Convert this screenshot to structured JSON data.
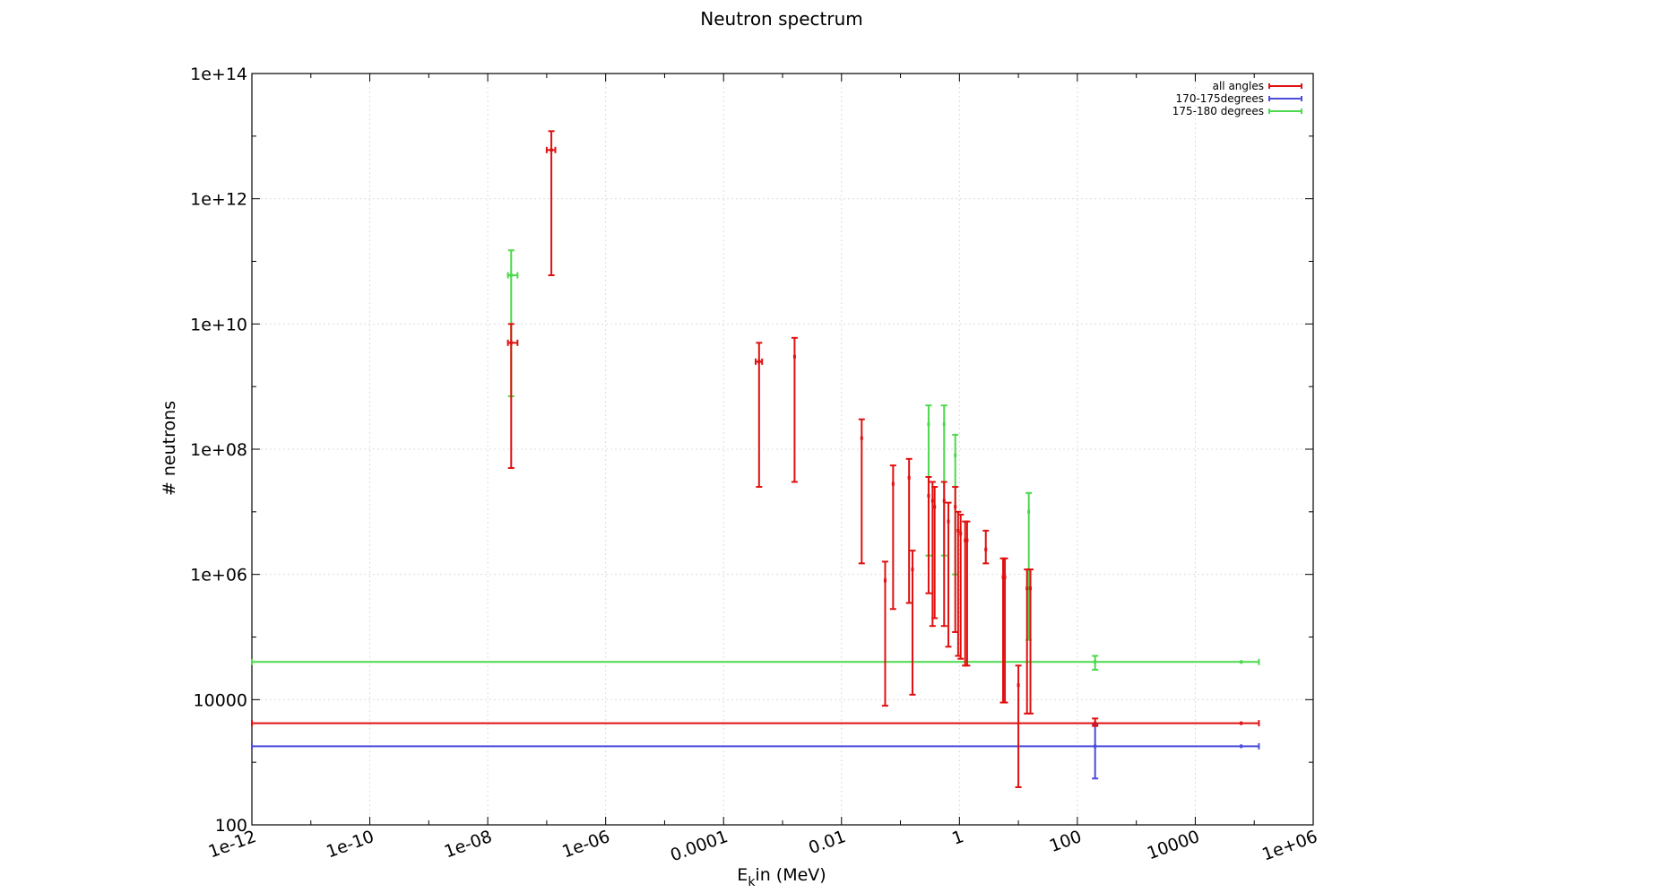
{
  "chart_data": {
    "type": "scatter",
    "title": "Neutron spectrum",
    "xlabel_main": "E",
    "xlabel_sub": "k",
    "xlabel_rest": "in (MeV)",
    "ylabel": "# neutrons",
    "xscale": "log",
    "yscale": "log",
    "xlim": [
      1e-12,
      1000000.0
    ],
    "ylim": [
      100,
      100000000000000.0
    ],
    "grid": true,
    "legend_position": "top-right",
    "x_ticks": [
      {
        "value": 1e-12,
        "label": "1e-12"
      },
      {
        "value": 1e-10,
        "label": "1e-10"
      },
      {
        "value": 1e-08,
        "label": "1e-08"
      },
      {
        "value": 1e-06,
        "label": "1e-06"
      },
      {
        "value": 0.0001,
        "label": "0.0001"
      },
      {
        "value": 0.01,
        "label": "0.01"
      },
      {
        "value": 1,
        "label": "1"
      },
      {
        "value": 100,
        "label": "100"
      },
      {
        "value": 10000,
        "label": "10000"
      },
      {
        "value": 1000000.0,
        "label": "1e+06"
      }
    ],
    "y_ticks": [
      {
        "value": 100,
        "label": "100"
      },
      {
        "value": 10000,
        "label": "10000"
      },
      {
        "value": 1000000.0,
        "label": "1e+06"
      },
      {
        "value": 100000000.0,
        "label": "1e+08"
      },
      {
        "value": 10000000000.0,
        "label": "1e+10"
      },
      {
        "value": 1000000000000.0,
        "label": "1e+12"
      },
      {
        "value": 100000000000000.0,
        "label": "1e+14"
      }
    ],
    "series": [
      {
        "name": "175-180 degrees",
        "color": "#4cd94c",
        "points": [
          {
            "x": 2.5e-08,
            "y": 60000000000.0,
            "ylo": 700000000.0,
            "yhi": 150000000000.0,
            "xlo": 2.2e-08,
            "xhi": 3.2e-08
          },
          {
            "x": 0.3,
            "y": 250000000.0,
            "ylo": 2000000.0,
            "yhi": 500000000.0
          },
          {
            "x": 0.55,
            "y": 250000000.0,
            "ylo": 2000000.0,
            "yhi": 500000000.0
          },
          {
            "x": 0.85,
            "y": 80000000.0,
            "ylo": 1000000.0,
            "yhi": 170000000.0
          },
          {
            "x": 15,
            "y": 10000000.0,
            "ylo": 90000.0,
            "yhi": 20000000.0
          },
          {
            "x": 200,
            "y": 40000,
            "ylo": 30000,
            "yhi": 50000
          },
          {
            "x": 60000,
            "y": 40000,
            "ylo": 40000,
            "yhi": 40000,
            "xlo": 1e-12,
            "xhi": 120000.0
          }
        ]
      },
      {
        "name": "170-175degrees",
        "color": "#4c4cdb",
        "points": [
          {
            "x": 200,
            "y": 1800,
            "ylo": 550,
            "yhi": 4000
          },
          {
            "x": 60000,
            "y": 1800,
            "ylo": 1800,
            "yhi": 1800,
            "xlo": 1e-12,
            "xhi": 120000.0
          }
        ]
      },
      {
        "name": "all angles",
        "color": "#e01010",
        "points": [
          {
            "x": 2.5e-08,
            "y": 5000000000.0,
            "ylo": 50000000.0,
            "yhi": 10000000000.0,
            "xlo": 2.2e-08,
            "xhi": 3.2e-08
          },
          {
            "x": 1.2e-07,
            "y": 6000000000000.0,
            "ylo": 60000000000.0,
            "yhi": 12000000000000.0,
            "xlo": 1e-07,
            "xhi": 1.4e-07
          },
          {
            "x": 0.0004,
            "y": 2500000000.0,
            "ylo": 25000000.0,
            "yhi": 5000000000.0,
            "xlo": 0.00035,
            "xhi": 0.00045
          },
          {
            "x": 0.0016,
            "y": 3000000000.0,
            "ylo": 30000000.0,
            "yhi": 6000000000.0
          },
          {
            "x": 0.022,
            "y": 150000000.0,
            "ylo": 1500000.0,
            "yhi": 300000000.0
          },
          {
            "x": 0.055,
            "y": 800000.0,
            "ylo": 8000,
            "yhi": 1600000.0
          },
          {
            "x": 0.075,
            "y": 28000000.0,
            "ylo": 280000.0,
            "yhi": 55000000.0
          },
          {
            "x": 0.14,
            "y": 35000000.0,
            "ylo": 350000.0,
            "yhi": 70000000.0
          },
          {
            "x": 0.16,
            "y": 1200000.0,
            "ylo": 12000,
            "yhi": 2400000.0
          },
          {
            "x": 0.3,
            "y": 18000000.0,
            "ylo": 500000.0,
            "yhi": 36000000.0
          },
          {
            "x": 0.35,
            "y": 15000000.0,
            "ylo": 150000.0,
            "yhi": 30000000.0
          },
          {
            "x": 0.38,
            "y": 12000000.0,
            "ylo": 200000.0,
            "yhi": 25000000.0
          },
          {
            "x": 0.55,
            "y": 15000000.0,
            "ylo": 150000.0,
            "yhi": 30000000.0
          },
          {
            "x": 0.65,
            "y": 7000000.0,
            "ylo": 70000.0,
            "yhi": 14000000.0
          },
          {
            "x": 0.85,
            "y": 12000000.0,
            "ylo": 120000.0,
            "yhi": 25000000.0
          },
          {
            "x": 0.95,
            "y": 5000000.0,
            "ylo": 50000.0,
            "yhi": 10000000.0
          },
          {
            "x": 1.05,
            "y": 4500000.0,
            "ylo": 45000.0,
            "yhi": 9000000.0
          },
          {
            "x": 1.25,
            "y": 3500000.0,
            "ylo": 35000.0,
            "yhi": 7000000.0
          },
          {
            "x": 1.35,
            "y": 3500000.0,
            "ylo": 35000.0,
            "yhi": 7000000.0
          },
          {
            "x": 2.8,
            "y": 2500000.0,
            "ylo": 1500000.0,
            "yhi": 5000000.0
          },
          {
            "x": 5.5,
            "y": 900000.0,
            "ylo": 9000,
            "yhi": 1800000.0
          },
          {
            "x": 5.9,
            "y": 900000.0,
            "ylo": 9000,
            "yhi": 1800000.0
          },
          {
            "x": 10,
            "y": 17000,
            "ylo": 400,
            "yhi": 35000
          },
          {
            "x": 14,
            "y": 600000.0,
            "ylo": 6000,
            "yhi": 1200000.0
          },
          {
            "x": 16,
            "y": 600000.0,
            "ylo": 6000,
            "yhi": 1200000.0
          },
          {
            "x": 200,
            "y": 4200,
            "ylo": 3800,
            "yhi": 5000
          },
          {
            "x": 60000,
            "y": 4200,
            "ylo": 4200,
            "yhi": 4200,
            "xlo": 1e-12,
            "xhi": 120000.0
          }
        ]
      }
    ],
    "legend_order": [
      "all angles",
      "170-175degrees",
      "175-180 degrees"
    ]
  }
}
